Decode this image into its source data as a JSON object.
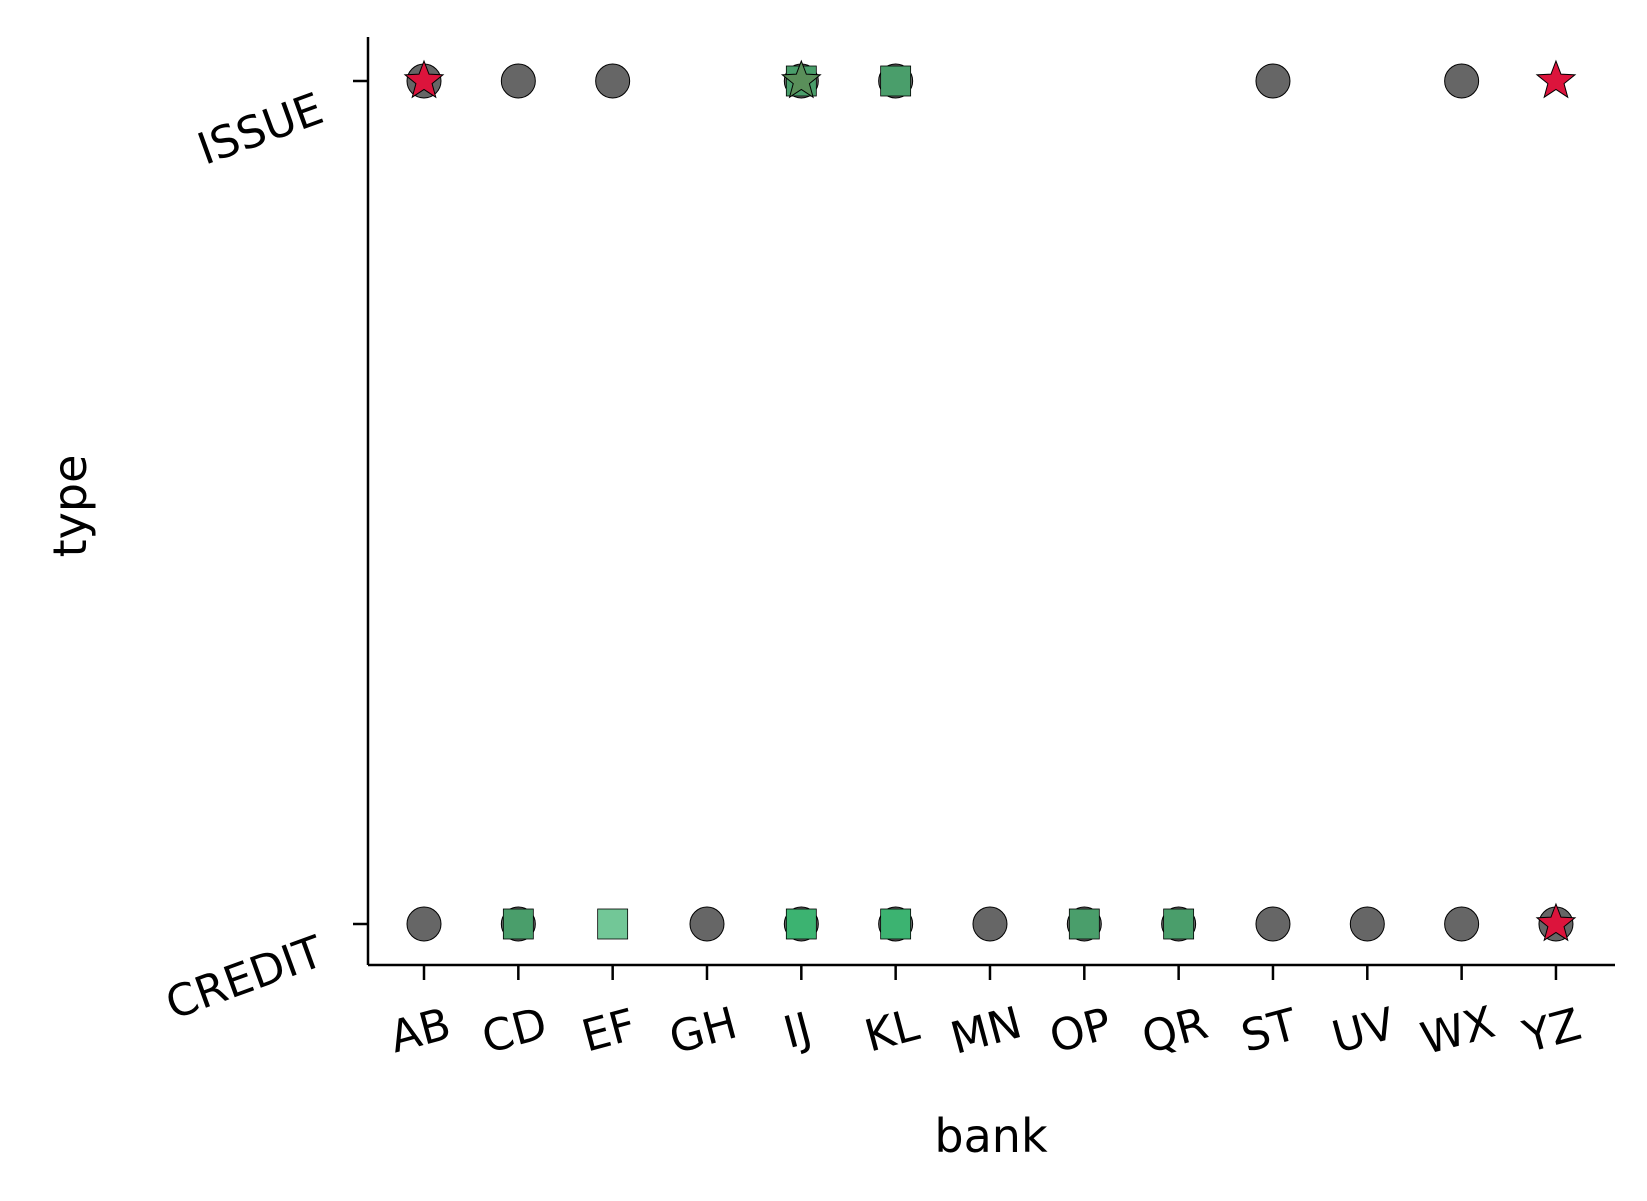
{
  "chart_data": {
    "type": "scatter",
    "xlabel": "bank",
    "ylabel": "type",
    "x_categories": [
      "AB",
      "CD",
      "EF",
      "GH",
      "IJ",
      "KL",
      "MN",
      "OP",
      "QR",
      "ST",
      "UV",
      "WX",
      "YZ"
    ],
    "y_categories": [
      "CREDIT",
      "ISSUE"
    ],
    "grid": false,
    "marker_colors": {
      "circle": "#666666",
      "square_dark": "#4a9e6b",
      "square_light": "#72c797",
      "square_mid": "#3cb371",
      "star": "#dc143c"
    },
    "points": [
      {
        "x": "AB",
        "y": "ISSUE",
        "marker": "circle",
        "color": "#666666"
      },
      {
        "x": "AB",
        "y": "ISSUE",
        "marker": "star",
        "color": "#dc143c"
      },
      {
        "x": "CD",
        "y": "ISSUE",
        "marker": "circle",
        "color": "#666666"
      },
      {
        "x": "EF",
        "y": "ISSUE",
        "marker": "circle",
        "color": "#666666"
      },
      {
        "x": "IJ",
        "y": "ISSUE",
        "marker": "circle",
        "color": "#666666"
      },
      {
        "x": "IJ",
        "y": "ISSUE",
        "marker": "square",
        "color": "#4a9e6b"
      },
      {
        "x": "IJ",
        "y": "ISSUE",
        "marker": "star",
        "color": "#5a8f5a"
      },
      {
        "x": "KL",
        "y": "ISSUE",
        "marker": "circle",
        "color": "#666666"
      },
      {
        "x": "KL",
        "y": "ISSUE",
        "marker": "square",
        "color": "#4a9e6b"
      },
      {
        "x": "ST",
        "y": "ISSUE",
        "marker": "circle",
        "color": "#666666"
      },
      {
        "x": "WX",
        "y": "ISSUE",
        "marker": "circle",
        "color": "#666666"
      },
      {
        "x": "YZ",
        "y": "ISSUE",
        "marker": "star",
        "color": "#dc143c"
      },
      {
        "x": "AB",
        "y": "CREDIT",
        "marker": "circle",
        "color": "#666666"
      },
      {
        "x": "CD",
        "y": "CREDIT",
        "marker": "circle",
        "color": "#666666"
      },
      {
        "x": "CD",
        "y": "CREDIT",
        "marker": "square",
        "color": "#4a9e6b"
      },
      {
        "x": "EF",
        "y": "CREDIT",
        "marker": "square",
        "color": "#72c797"
      },
      {
        "x": "GH",
        "y": "CREDIT",
        "marker": "circle",
        "color": "#666666"
      },
      {
        "x": "IJ",
        "y": "CREDIT",
        "marker": "circle",
        "color": "#666666"
      },
      {
        "x": "IJ",
        "y": "CREDIT",
        "marker": "square",
        "color": "#3cb371"
      },
      {
        "x": "KL",
        "y": "CREDIT",
        "marker": "circle",
        "color": "#666666"
      },
      {
        "x": "KL",
        "y": "CREDIT",
        "marker": "square",
        "color": "#3cb371"
      },
      {
        "x": "MN",
        "y": "CREDIT",
        "marker": "circle",
        "color": "#666666"
      },
      {
        "x": "OP",
        "y": "CREDIT",
        "marker": "circle",
        "color": "#666666"
      },
      {
        "x": "OP",
        "y": "CREDIT",
        "marker": "square",
        "color": "#4a9e6b"
      },
      {
        "x": "QR",
        "y": "CREDIT",
        "marker": "circle",
        "color": "#666666"
      },
      {
        "x": "QR",
        "y": "CREDIT",
        "marker": "square",
        "color": "#4a9e6b"
      },
      {
        "x": "ST",
        "y": "CREDIT",
        "marker": "circle",
        "color": "#666666"
      },
      {
        "x": "UV",
        "y": "CREDIT",
        "marker": "circle",
        "color": "#666666"
      },
      {
        "x": "WX",
        "y": "CREDIT",
        "marker": "circle",
        "color": "#666666"
      },
      {
        "x": "YZ",
        "y": "CREDIT",
        "marker": "circle",
        "color": "#666666"
      },
      {
        "x": "YZ",
        "y": "CREDIT",
        "marker": "star",
        "color": "#dc143c"
      }
    ]
  }
}
